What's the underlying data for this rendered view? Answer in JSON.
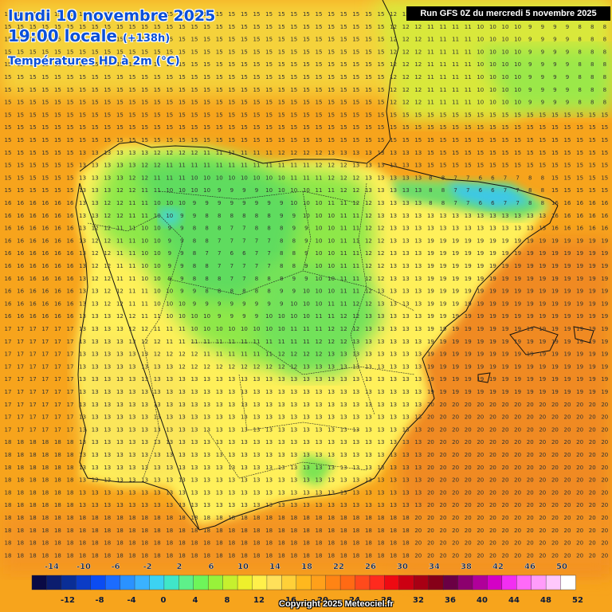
{
  "header": {
    "date_line": "lundi 10 novembre 2025",
    "time_line": "19:00 locale",
    "lead_time": "(+138h)",
    "variable": "Températures HD à 2m (°C)",
    "run_label": "Run GFS 0Z du mercredi 5 novembre 2025"
  },
  "footer": {
    "copyright": "Copyright 2025 Meteociel.fr"
  },
  "legend": {
    "upper_labels": [
      "-14",
      "-10",
      "-6",
      "-2",
      "2",
      "6",
      "10",
      "14",
      "18",
      "22",
      "26",
      "30",
      "34",
      "38",
      "42",
      "46",
      "50"
    ],
    "lower_labels": [
      "-12",
      "-8",
      "-4",
      "0",
      "4",
      "8",
      "12",
      "16",
      "20",
      "24",
      "28",
      "32",
      "36",
      "40",
      "44",
      "48",
      "52"
    ],
    "colors": [
      "#0a0a45",
      "#0c1d6e",
      "#0a2e96",
      "#0b3cc6",
      "#0b4cf2",
      "#1c6cff",
      "#2a92ff",
      "#3ab2ff",
      "#3cd2f2",
      "#40e6c8",
      "#5ef08a",
      "#6ef55a",
      "#98f23a",
      "#c6f02e",
      "#eef02c",
      "#fff04a",
      "#ffe05a",
      "#ffd038",
      "#ffb81e",
      "#ffa01a",
      "#ff8414",
      "#ff6a14",
      "#ff4a1c",
      "#ff2a1e",
      "#ee0a12",
      "#cc0012",
      "#a80014",
      "#860018",
      "#6a0044",
      "#8c006e",
      "#b0009a",
      "#d400c6",
      "#f22ef2",
      "#ff6af8",
      "#ff9cfa",
      "#ffc8fc",
      "#ffffff"
    ]
  },
  "map_description_colors": {
    "sea_warm": "#f7a41c",
    "land_cool": "#6fe05a",
    "land_mid": "#d6f03a",
    "land_warm": "#fff04a"
  }
}
